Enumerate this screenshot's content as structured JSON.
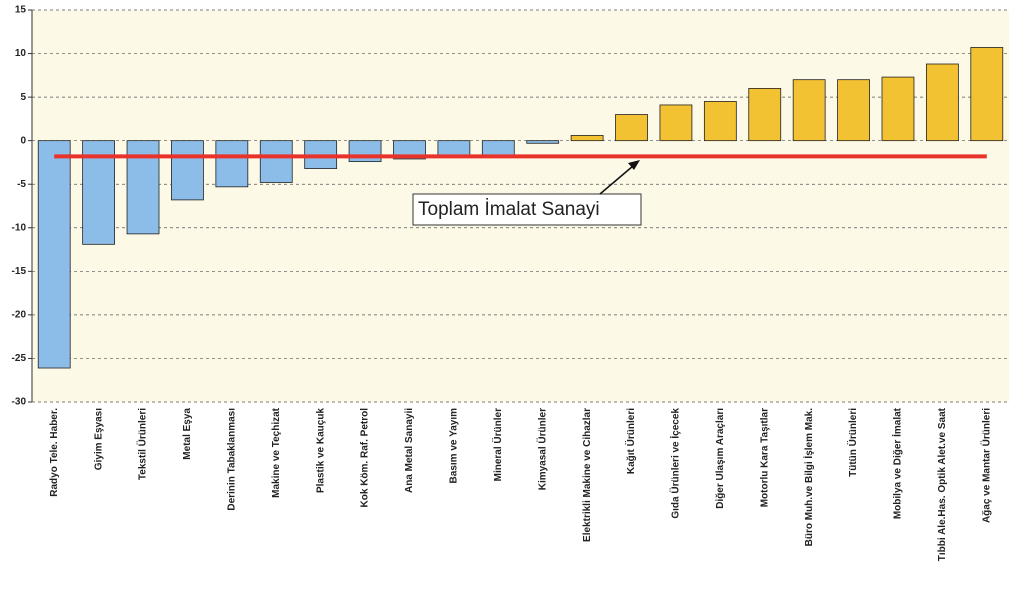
{
  "chart_data": {
    "type": "bar",
    "categories": [
      "Radyo Tele. Haber.",
      "Giyim Eşyası",
      "Tekstil Ürünleri",
      "Metal Eşya",
      "Derinin Tabaklanması",
      "Makine ve Teçhizat",
      "Plastik ve Kauçuk",
      "Kok Köm. Raf. Petrol",
      "Ana Metal Sanayii",
      "Basım ve Yayım",
      "Mineral Ürünler",
      "Kimyasal Ürünler",
      "Elektrikli Makine ve Cihazlar",
      "Kağıt Ürünleri",
      "Gıda Ürünleri ve İçecek",
      "Diğer Ulaşım Araçları",
      "Motorlu Kara Taşıtlar",
      "Büro Muh.ve Bilgi İşlem Mak.",
      "Tütün Ürünleri",
      "Mobilya ve Diğer İmalat",
      "Tıbbi Ale.Has. Optik Alet.ve Saat",
      "Ağaç ve Mantar Ürünleri"
    ],
    "values": [
      -26.1,
      -11.9,
      -10.7,
      -6.8,
      -5.3,
      -4.8,
      -3.2,
      -2.4,
      -2.1,
      -1.9,
      -1.7,
      -0.3,
      0.6,
      3.0,
      4.1,
      4.5,
      6.0,
      7.0,
      7.0,
      7.3,
      8.8,
      10.7
    ],
    "negative_color": "#8cbce8",
    "positive_color": "#f3c232",
    "ylim": [
      -30,
      15
    ],
    "yticks": [
      -30,
      -25,
      -20,
      -15,
      -10,
      -5,
      0,
      5,
      10,
      15
    ],
    "grid": true,
    "reference_line": {
      "label": "Toplam İmalat Sanayi",
      "value": -1.8,
      "color": "#e8322a"
    }
  }
}
